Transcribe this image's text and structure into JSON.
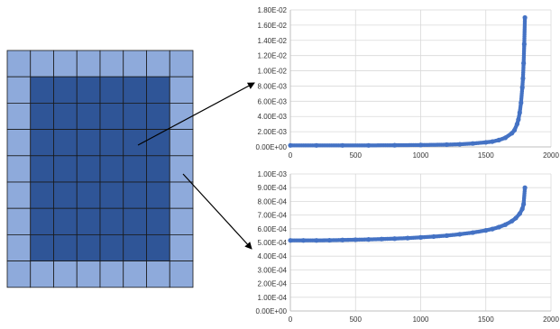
{
  "colors": {
    "grid_outer": "#8eaadb",
    "grid_inner": "#2f5597",
    "grid_line": "#1a1a1a",
    "series": "#4472c4",
    "gridline": "#d9d9d9",
    "axis": "#bfbfbf",
    "arrow": "#000000"
  },
  "grid": {
    "rows": 9,
    "cols": 8,
    "border_cells": 1
  },
  "chart_data": [
    {
      "type": "scatter",
      "title": "",
      "xlabel": "",
      "ylabel": "",
      "xlim": [
        0,
        2000
      ],
      "ylim": [
        0,
        0.018
      ],
      "x_ticks": [
        0,
        500,
        1000,
        1500,
        2000
      ],
      "x_tick_labels": [
        "0",
        "500",
        "1000",
        "1500",
        "2000"
      ],
      "y_ticks": [
        0,
        0.002,
        0.004,
        0.006,
        0.008,
        0.01,
        0.012,
        0.014,
        0.016,
        0.018
      ],
      "y_tick_labels": [
        "0.00E+00",
        "2.00E-03",
        "4.00E-03",
        "6.00E-03",
        "8.00E-03",
        "1.00E-02",
        "1.20E-02",
        "1.40E-02",
        "1.60E-02",
        "1.80E-02"
      ],
      "grid": true,
      "series": [
        {
          "x": [
            0,
            200,
            400,
            600,
            800,
            1000,
            1200,
            1300,
            1400,
            1500,
            1550,
            1600,
            1650,
            1700,
            1720,
            1740,
            1750,
            1760,
            1770,
            1780,
            1785,
            1790,
            1795,
            1800
          ],
          "y": [
            0.0002,
            0.0002,
            0.0002,
            0.0002,
            0.00022,
            0.00025,
            0.0003,
            0.00035,
            0.00045,
            0.0006,
            0.0007,
            0.0009,
            0.0012,
            0.0018,
            0.0022,
            0.003,
            0.0036,
            0.0045,
            0.0058,
            0.0078,
            0.009,
            0.011,
            0.0135,
            0.017
          ]
        }
      ]
    },
    {
      "type": "scatter",
      "title": "",
      "xlabel": "",
      "ylabel": "",
      "xlim": [
        0,
        2000
      ],
      "ylim": [
        0,
        0.001
      ],
      "x_ticks": [
        0,
        500,
        1000,
        1500,
        2000
      ],
      "x_tick_labels": [
        "0",
        "500",
        "1000",
        "1500",
        "2000"
      ],
      "y_ticks": [
        0,
        0.0001,
        0.0002,
        0.0003,
        0.0004,
        0.0005,
        0.0006,
        0.0007,
        0.0008,
        0.0009,
        0.001
      ],
      "y_tick_labels": [
        "0.00E+00",
        "1.00E-04",
        "2.00E-04",
        "3.00E-04",
        "4.00E-04",
        "5.00E-04",
        "6.00E-04",
        "7.00E-04",
        "8.00E-04",
        "9.00E-04",
        "1.00E-03"
      ],
      "grid": true,
      "series": [
        {
          "x": [
            0,
            100,
            200,
            300,
            400,
            500,
            600,
            700,
            800,
            900,
            1000,
            1100,
            1200,
            1300,
            1400,
            1500,
            1550,
            1600,
            1650,
            1700,
            1730,
            1760,
            1780,
            1790,
            1800
          ],
          "y": [
            0.000515,
            0.000515,
            0.000515,
            0.000516,
            0.000518,
            0.00052,
            0.000522,
            0.000525,
            0.000528,
            0.000532,
            0.000537,
            0.000543,
            0.00055,
            0.00056,
            0.000572,
            0.000588,
            0.000598,
            0.000612,
            0.00063,
            0.000656,
            0.000678,
            0.00071,
            0.000745,
            0.00078,
            0.0009
          ]
        }
      ]
    }
  ]
}
